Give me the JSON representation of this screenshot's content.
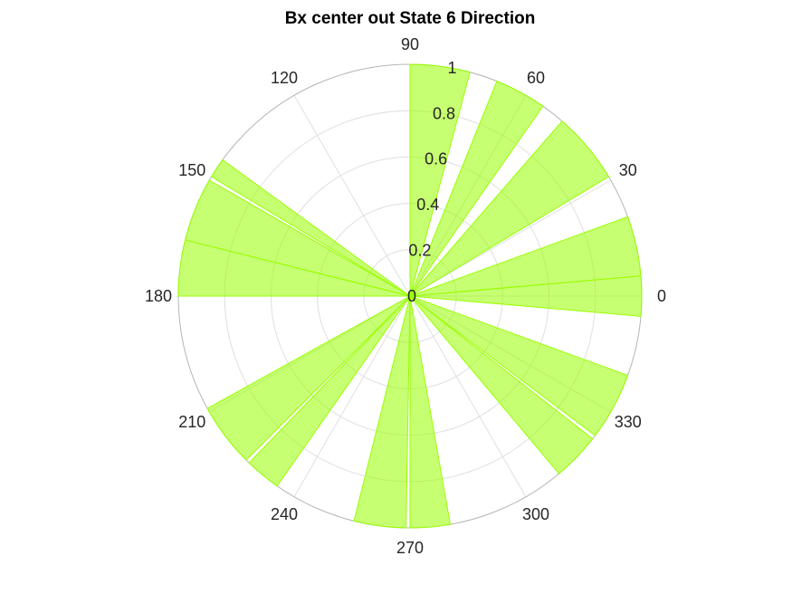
{
  "title": "Bx  center out State 6 Direction",
  "chart_data": {
    "type": "polar-histogram",
    "title": "Bx  center out State 6 Direction",
    "theta_zero": "right",
    "theta_direction": "counterclockwise",
    "theta_ticks": [
      "0",
      "30",
      "60",
      "90",
      "120",
      "150",
      "180",
      "210",
      "240",
      "270",
      "300",
      "330"
    ],
    "r_ticks": [
      "0",
      "0.2",
      "0.4",
      "0.6",
      "0.8",
      "1"
    ],
    "rlim": [
      0,
      1
    ],
    "grid": true,
    "bar_color": "#99ff00",
    "bars": [
      {
        "start_deg": 355,
        "end_deg": 5,
        "value": 1.0
      },
      {
        "start_deg": 5,
        "end_deg": 20,
        "value": 1.0
      },
      {
        "start_deg": 31,
        "end_deg": 49,
        "value": 1.0
      },
      {
        "start_deg": 55,
        "end_deg": 68,
        "value": 1.0
      },
      {
        "start_deg": 75,
        "end_deg": 90,
        "value": 1.0
      },
      {
        "start_deg": 144,
        "end_deg": 149,
        "value": 1.0
      },
      {
        "start_deg": 150,
        "end_deg": 166,
        "value": 1.0
      },
      {
        "start_deg": 166,
        "end_deg": 180,
        "value": 1.0
      },
      {
        "start_deg": 209,
        "end_deg": 225,
        "value": 1.0
      },
      {
        "start_deg": 226,
        "end_deg": 235,
        "value": 1.0
      },
      {
        "start_deg": 256,
        "end_deg": 269,
        "value": 1.0
      },
      {
        "start_deg": 270,
        "end_deg": 280,
        "value": 1.0
      },
      {
        "start_deg": 310,
        "end_deg": 322,
        "value": 1.0
      },
      {
        "start_deg": 323,
        "end_deg": 340,
        "value": 1.0
      }
    ]
  }
}
